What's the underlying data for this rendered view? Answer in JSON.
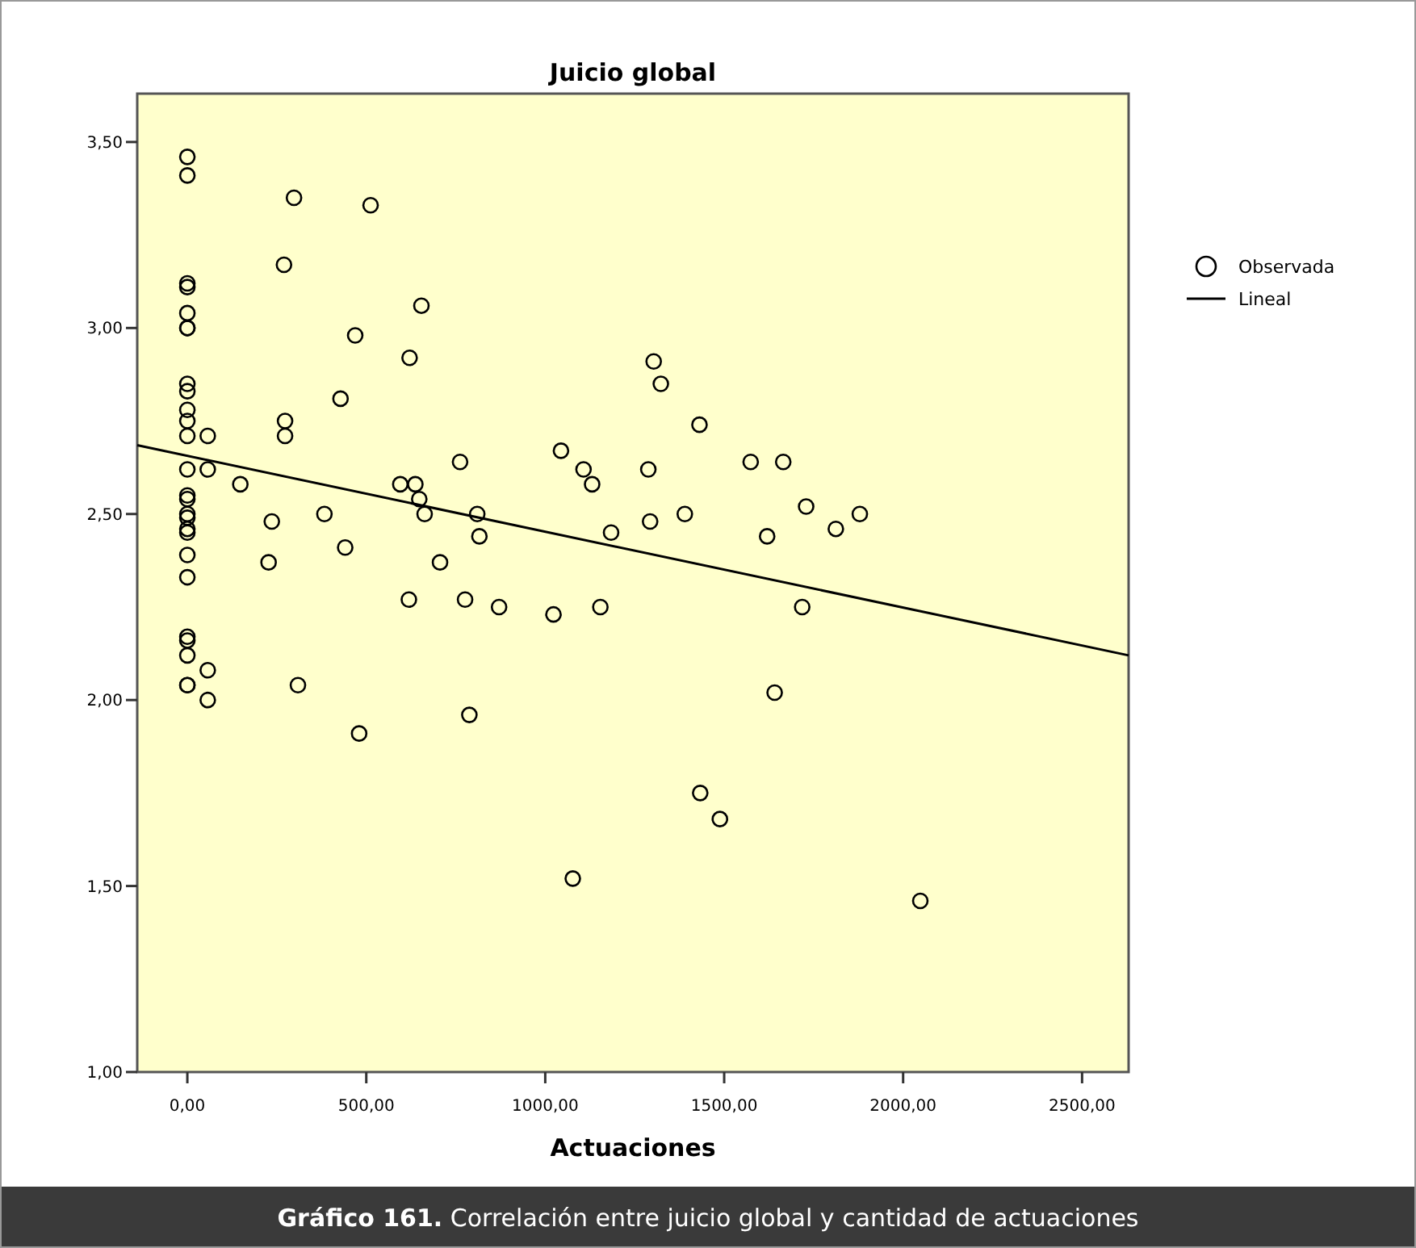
{
  "chart_data": {
    "type": "scatter",
    "title": "Juicio global",
    "xlabel": "Actuaciones",
    "annotations": [
      "Gráfico 161. Correlación entre juicio global y cantidad de actuaciones"
    ],
    "xlim": [
      -140,
      2630
    ],
    "ylim": [
      1.0,
      3.63
    ],
    "xticks": [
      {
        "value": 0,
        "label": "0,00"
      },
      {
        "value": 500,
        "label": "500,00"
      },
      {
        "value": 1000,
        "label": "1000,00"
      },
      {
        "value": 1500,
        "label": "1500,00"
      },
      {
        "value": 2000,
        "label": "2000,00"
      },
      {
        "value": 2500,
        "label": "2500,00"
      }
    ],
    "yticks": [
      {
        "value": 1,
        "label": "1,00"
      },
      {
        "value": 1.5,
        "label": "1,50"
      },
      {
        "value": 2,
        "label": "2,00"
      },
      {
        "value": 2.5,
        "label": "2,50"
      },
      {
        "value": 3,
        "label": "3,00"
      },
      {
        "value": 3.5,
        "label": "3,50"
      }
    ],
    "grid": false,
    "legend": "right",
    "series": [
      {
        "name": "Observada",
        "marker": "circle",
        "color": "#000000",
        "x": [
          0,
          0,
          0,
          0,
          0,
          0,
          0,
          0,
          0,
          0,
          0,
          0,
          0,
          0,
          0,
          0,
          0,
          0,
          0,
          0,
          0,
          0,
          0,
          0,
          0,
          0,
          57,
          57,
          57,
          57,
          227,
          309,
          441,
          480,
          619,
          706,
          776,
          788,
          871,
          1023,
          1077,
          1154,
          298,
          512,
          270,
          654,
          469,
          621,
          428,
          273,
          273,
          148,
          236,
          383,
          595,
          637,
          648,
          663,
          762,
          810,
          816,
          1044,
          1107,
          1131,
          1184,
          1303,
          1323,
          1431,
          1288,
          1574,
          1665,
          1293,
          1390,
          1729,
          1620,
          1812,
          1879,
          1718,
          1641,
          1433,
          1488,
          2048
        ],
        "values": [
          3.46,
          3.41,
          3.12,
          3.11,
          3.04,
          3.0,
          3.0,
          2.85,
          2.83,
          2.78,
          2.75,
          2.71,
          2.62,
          2.55,
          2.54,
          2.5,
          2.49,
          2.46,
          2.45,
          2.39,
          2.33,
          2.17,
          2.16,
          2.12,
          2.04,
          2.04,
          2.08,
          2.0,
          2.71,
          2.62,
          2.37,
          2.04,
          2.41,
          1.91,
          2.27,
          2.37,
          2.27,
          1.96,
          2.25,
          2.23,
          1.52,
          2.25,
          3.35,
          3.33,
          3.17,
          3.06,
          2.98,
          2.92,
          2.81,
          2.75,
          2.71,
          2.58,
          2.48,
          2.5,
          2.58,
          2.58,
          2.54,
          2.5,
          2.64,
          2.5,
          2.44,
          2.67,
          2.62,
          2.58,
          2.45,
          2.91,
          2.85,
          2.74,
          2.62,
          2.64,
          2.64,
          2.48,
          2.5,
          2.52,
          2.44,
          2.46,
          2.5,
          2.25,
          2.02,
          1.75,
          1.68,
          1.46
        ]
      },
      {
        "name": "Lineal",
        "type": "line",
        "color": "#000000",
        "x": [
          -140,
          2630
        ],
        "values": [
          2.685,
          2.12
        ]
      }
    ]
  }
}
